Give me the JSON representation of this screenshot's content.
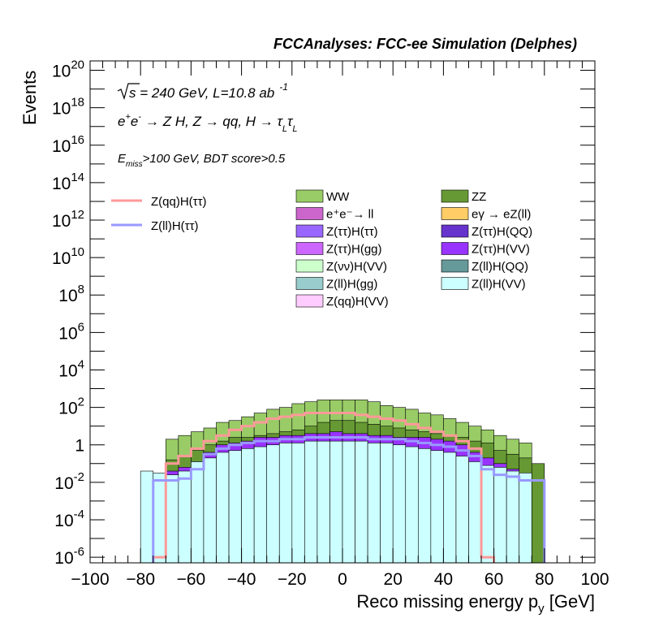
{
  "header": {
    "title": "FCCAnalyses: FCC-ee Simulation (Delphes)"
  },
  "annotations": {
    "sqrt_s": "s",
    "energy_lumi": " = 240 GeV, L=10.8 ab",
    "lumi_exp": "-1",
    "process": "→ Z H, Z  → qq, H  → τ",
    "process_tail": "τ",
    "tau_sub": "L",
    "e": "e",
    "plus": "+",
    "minus": "-",
    "emiss": "E",
    "emiss_sub": "miss",
    "cut": ">100 GeV, BDT score>0.5"
  },
  "chart_data": {
    "type": "histogram",
    "title": "",
    "xlabel": "Reco missing energy p",
    "xlabel_sub": "y",
    "xlabel_unit": " [GeV]",
    "ylabel": "Events",
    "xlim": [
      -100,
      100
    ],
    "ylim_log10": [
      -6.3,
      20.5
    ],
    "y_scale": "log",
    "bin_width": 5,
    "x_ticks": [
      "−100",
      "−80",
      "−60",
      "−40",
      "−20",
      "0",
      "20",
      "40",
      "60",
      "80",
      "100"
    ],
    "y_ticks": [
      {
        "base": "10",
        "exp": "20",
        "v": 20
      },
      {
        "base": "10",
        "exp": "18",
        "v": 18
      },
      {
        "base": "10",
        "exp": "16",
        "v": 16
      },
      {
        "base": "10",
        "exp": "14",
        "v": 14
      },
      {
        "base": "10",
        "exp": "12",
        "v": 12
      },
      {
        "base": "10",
        "exp": "10",
        "v": 10
      },
      {
        "base": "10",
        "exp": "8",
        "v": 8
      },
      {
        "base": "10",
        "exp": "6",
        "v": 6
      },
      {
        "base": "10",
        "exp": "4",
        "v": 4
      },
      {
        "base": "10",
        "exp": "2",
        "v": 2
      },
      {
        "base": "1",
        "exp": "",
        "v": 0
      },
      {
        "base": "10",
        "exp": "-2",
        "v": -2
      },
      {
        "base": "10",
        "exp": "-4",
        "v": -4
      },
      {
        "base": "10",
        "exp": "-6",
        "v": -6
      }
    ],
    "stack_layers_log10": [
      {
        "name": "Z(ll)H(VV)",
        "color": "#ccffff",
        "values": [
          null,
          null,
          null,
          null,
          -1.4,
          -1.5,
          -1.6,
          -1.4,
          -0.9,
          -0.7,
          -0.4,
          -0.3,
          -0.2,
          -0.1,
          0.0,
          0.1,
          0.1,
          0.2,
          0.2,
          0.2,
          0.2,
          0.2,
          0.1,
          0.1,
          0.0,
          -0.1,
          -0.2,
          -0.3,
          -0.4,
          -0.6,
          -0.9,
          -1.1,
          -1.2,
          -1.4,
          -1.5,
          null,
          null,
          null,
          null,
          null
        ]
      },
      {
        "name": "Z(ττ)H(VV)",
        "color": "#9933ff",
        "values": [
          null,
          null,
          null,
          null,
          null,
          -1.6,
          -1.4,
          -1.2,
          -0.9,
          -0.4,
          0.0,
          0.1,
          0.2,
          0.4,
          0.4,
          0.5,
          0.5,
          0.6,
          0.6,
          0.7,
          0.6,
          0.6,
          0.5,
          0.5,
          0.4,
          0.4,
          0.4,
          0.3,
          0.2,
          0.0,
          -0.4,
          -0.7,
          -1.0,
          -1.3,
          -1.5,
          null,
          null,
          null,
          null,
          null
        ]
      },
      {
        "name": "ZZ",
        "color": "#669933",
        "values": [
          null,
          null,
          null,
          null,
          null,
          null,
          -0.8,
          -0.6,
          -0.3,
          0.0,
          0.2,
          0.4,
          0.4,
          0.5,
          0.6,
          0.7,
          0.8,
          1.0,
          1.2,
          1.3,
          1.3,
          1.2,
          1.1,
          1.0,
          0.9,
          0.8,
          0.7,
          0.6,
          0.5,
          0.4,
          0.2,
          0.1,
          -0.3,
          -0.5,
          -0.7,
          -1.0,
          null,
          null,
          null,
          null
        ]
      },
      {
        "name": "WW",
        "color": "#99cc66",
        "values": [
          null,
          null,
          null,
          null,
          null,
          null,
          0.3,
          0.5,
          0.7,
          0.9,
          1.2,
          1.3,
          1.5,
          1.7,
          1.9,
          2.0,
          2.2,
          2.3,
          2.4,
          2.4,
          2.4,
          2.4,
          2.3,
          2.1,
          2.0,
          1.9,
          1.7,
          1.6,
          1.4,
          1.2,
          1.0,
          0.8,
          0.5,
          0.3,
          0.1,
          null,
          null,
          null,
          null,
          null
        ]
      }
    ],
    "lines_log10": [
      {
        "name": "Z(qq)H(ττ)",
        "color": "#ff9999",
        "values": [
          null,
          null,
          null,
          null,
          null,
          -6.0,
          -1.0,
          -0.6,
          -0.2,
          0.2,
          0.5,
          0.8,
          1.0,
          1.2,
          1.4,
          1.5,
          1.6,
          1.7,
          1.7,
          1.7,
          1.7,
          1.6,
          1.5,
          1.4,
          1.3,
          1.1,
          0.9,
          0.7,
          0.5,
          0.2,
          -0.2,
          -6.0,
          null,
          null,
          null,
          null,
          null,
          null,
          null,
          null
        ]
      },
      {
        "name": "Z(ll)H(ττ)",
        "color": "#9999ff",
        "values": [
          null,
          null,
          null,
          null,
          null,
          -1.9,
          -1.9,
          -1.8,
          -1.3,
          -0.5,
          -0.2,
          0.0,
          0.1,
          0.2,
          0.2,
          0.3,
          0.3,
          0.4,
          0.4,
          0.4,
          0.4,
          0.4,
          0.3,
          0.3,
          0.3,
          0.2,
          0.1,
          0.0,
          -0.1,
          -0.3,
          -0.6,
          -1.3,
          -1.6,
          -1.7,
          -1.9,
          -1.9,
          null,
          null,
          null,
          null
        ]
      }
    ],
    "legend_lines": [
      {
        "label": "Z(qq)H(ττ)",
        "color": "#ff9999"
      },
      {
        "label": "Z(ll)H(ττ)",
        "color": "#9999ff"
      }
    ],
    "legend_boxes": [
      {
        "label": "WW",
        "color": "#99cc66"
      },
      {
        "label": "ZZ",
        "color": "#669933"
      },
      {
        "label": "e⁺e⁻→ ll",
        "color": "#cc66cc"
      },
      {
        "label": "eγ → eZ(ll)",
        "color": "#ffcc66"
      },
      {
        "label": "Z(ττ)H(ττ)",
        "color": "#9966ff"
      },
      {
        "label": "Z(ττ)H(QQ)",
        "color": "#6633cc"
      },
      {
        "label": "Z(ττ)H(gg)",
        "color": "#cc66ff"
      },
      {
        "label": "Z(ττ)H(VV)",
        "color": "#9933ff"
      },
      {
        "label": "Z(νν)H(VV)",
        "color": "#ccffcc"
      },
      {
        "label": "Z(ll)H(QQ)",
        "color": "#669999"
      },
      {
        "label": "Z(ll)H(gg)",
        "color": "#99cccc"
      },
      {
        "label": "Z(ll)H(VV)",
        "color": "#ccffff"
      },
      {
        "label": "Z(qq)H(VV)",
        "color": "#ffccff"
      }
    ],
    "legend_placement": "upper half, inside plot",
    "grid": false
  }
}
